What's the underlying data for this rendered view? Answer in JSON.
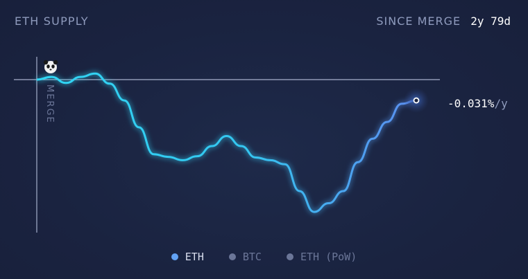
{
  "header": {
    "title": "ETH SUPPLY",
    "since_label": "SINCE MERGE",
    "since_value": "2y 79d"
  },
  "chart_data": {
    "type": "line",
    "title": "ETH SUPPLY",
    "series": [
      {
        "name": "ETH",
        "color_start": "#2fd6f4",
        "color_end": "#5c8df0",
        "values": [
          0.0,
          0.004,
          -0.005,
          0.004,
          0.009,
          -0.006,
          -0.031,
          -0.071,
          -0.111,
          -0.115,
          -0.12,
          -0.114,
          -0.099,
          -0.084,
          -0.099,
          -0.116,
          -0.12,
          -0.126,
          -0.166,
          -0.197,
          -0.184,
          -0.166,
          -0.123,
          -0.088,
          -0.063,
          -0.036,
          -0.031
        ]
      }
    ],
    "annotations": {
      "merge_label": "MERGE",
      "current_rate": "-0.031%",
      "rate_unit": "/y"
    }
  },
  "legend": {
    "items": [
      {
        "label": "ETH",
        "active": true
      },
      {
        "label": "BTC",
        "active": false
      },
      {
        "label": "ETH (PoW)",
        "active": false
      }
    ]
  },
  "icons": {
    "avatar": "panda-icon"
  }
}
